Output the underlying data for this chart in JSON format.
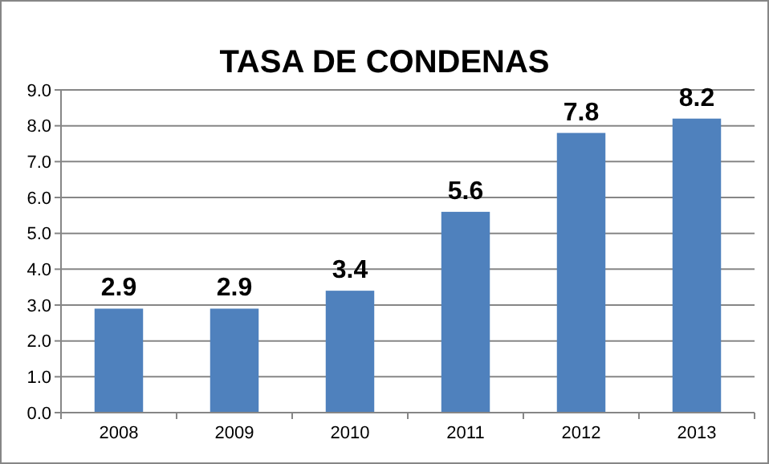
{
  "chart_data": {
    "type": "bar",
    "title": "TASA DE CONDENAS",
    "categories": [
      "2008",
      "2009",
      "2010",
      "2011",
      "2012",
      "2013"
    ],
    "values": [
      2.9,
      2.9,
      3.4,
      5.6,
      7.8,
      8.2
    ],
    "color": "#4f81bd",
    "ylim": [
      0,
      9
    ],
    "yticks": [
      {
        "value": 0,
        "label": "0.0"
      },
      {
        "value": 1,
        "label": "1.0"
      },
      {
        "value": 2,
        "label": "2.0"
      },
      {
        "value": 3,
        "label": "3.0"
      },
      {
        "value": 4,
        "label": "4.0"
      },
      {
        "value": 5,
        "label": "5.0"
      },
      {
        "value": 6,
        "label": "6.0"
      },
      {
        "value": 7,
        "label": "7.0"
      },
      {
        "value": 8,
        "label": "8.0"
      },
      {
        "value": 9,
        "label": "9.0"
      }
    ],
    "grid": true,
    "data_labels": true
  }
}
